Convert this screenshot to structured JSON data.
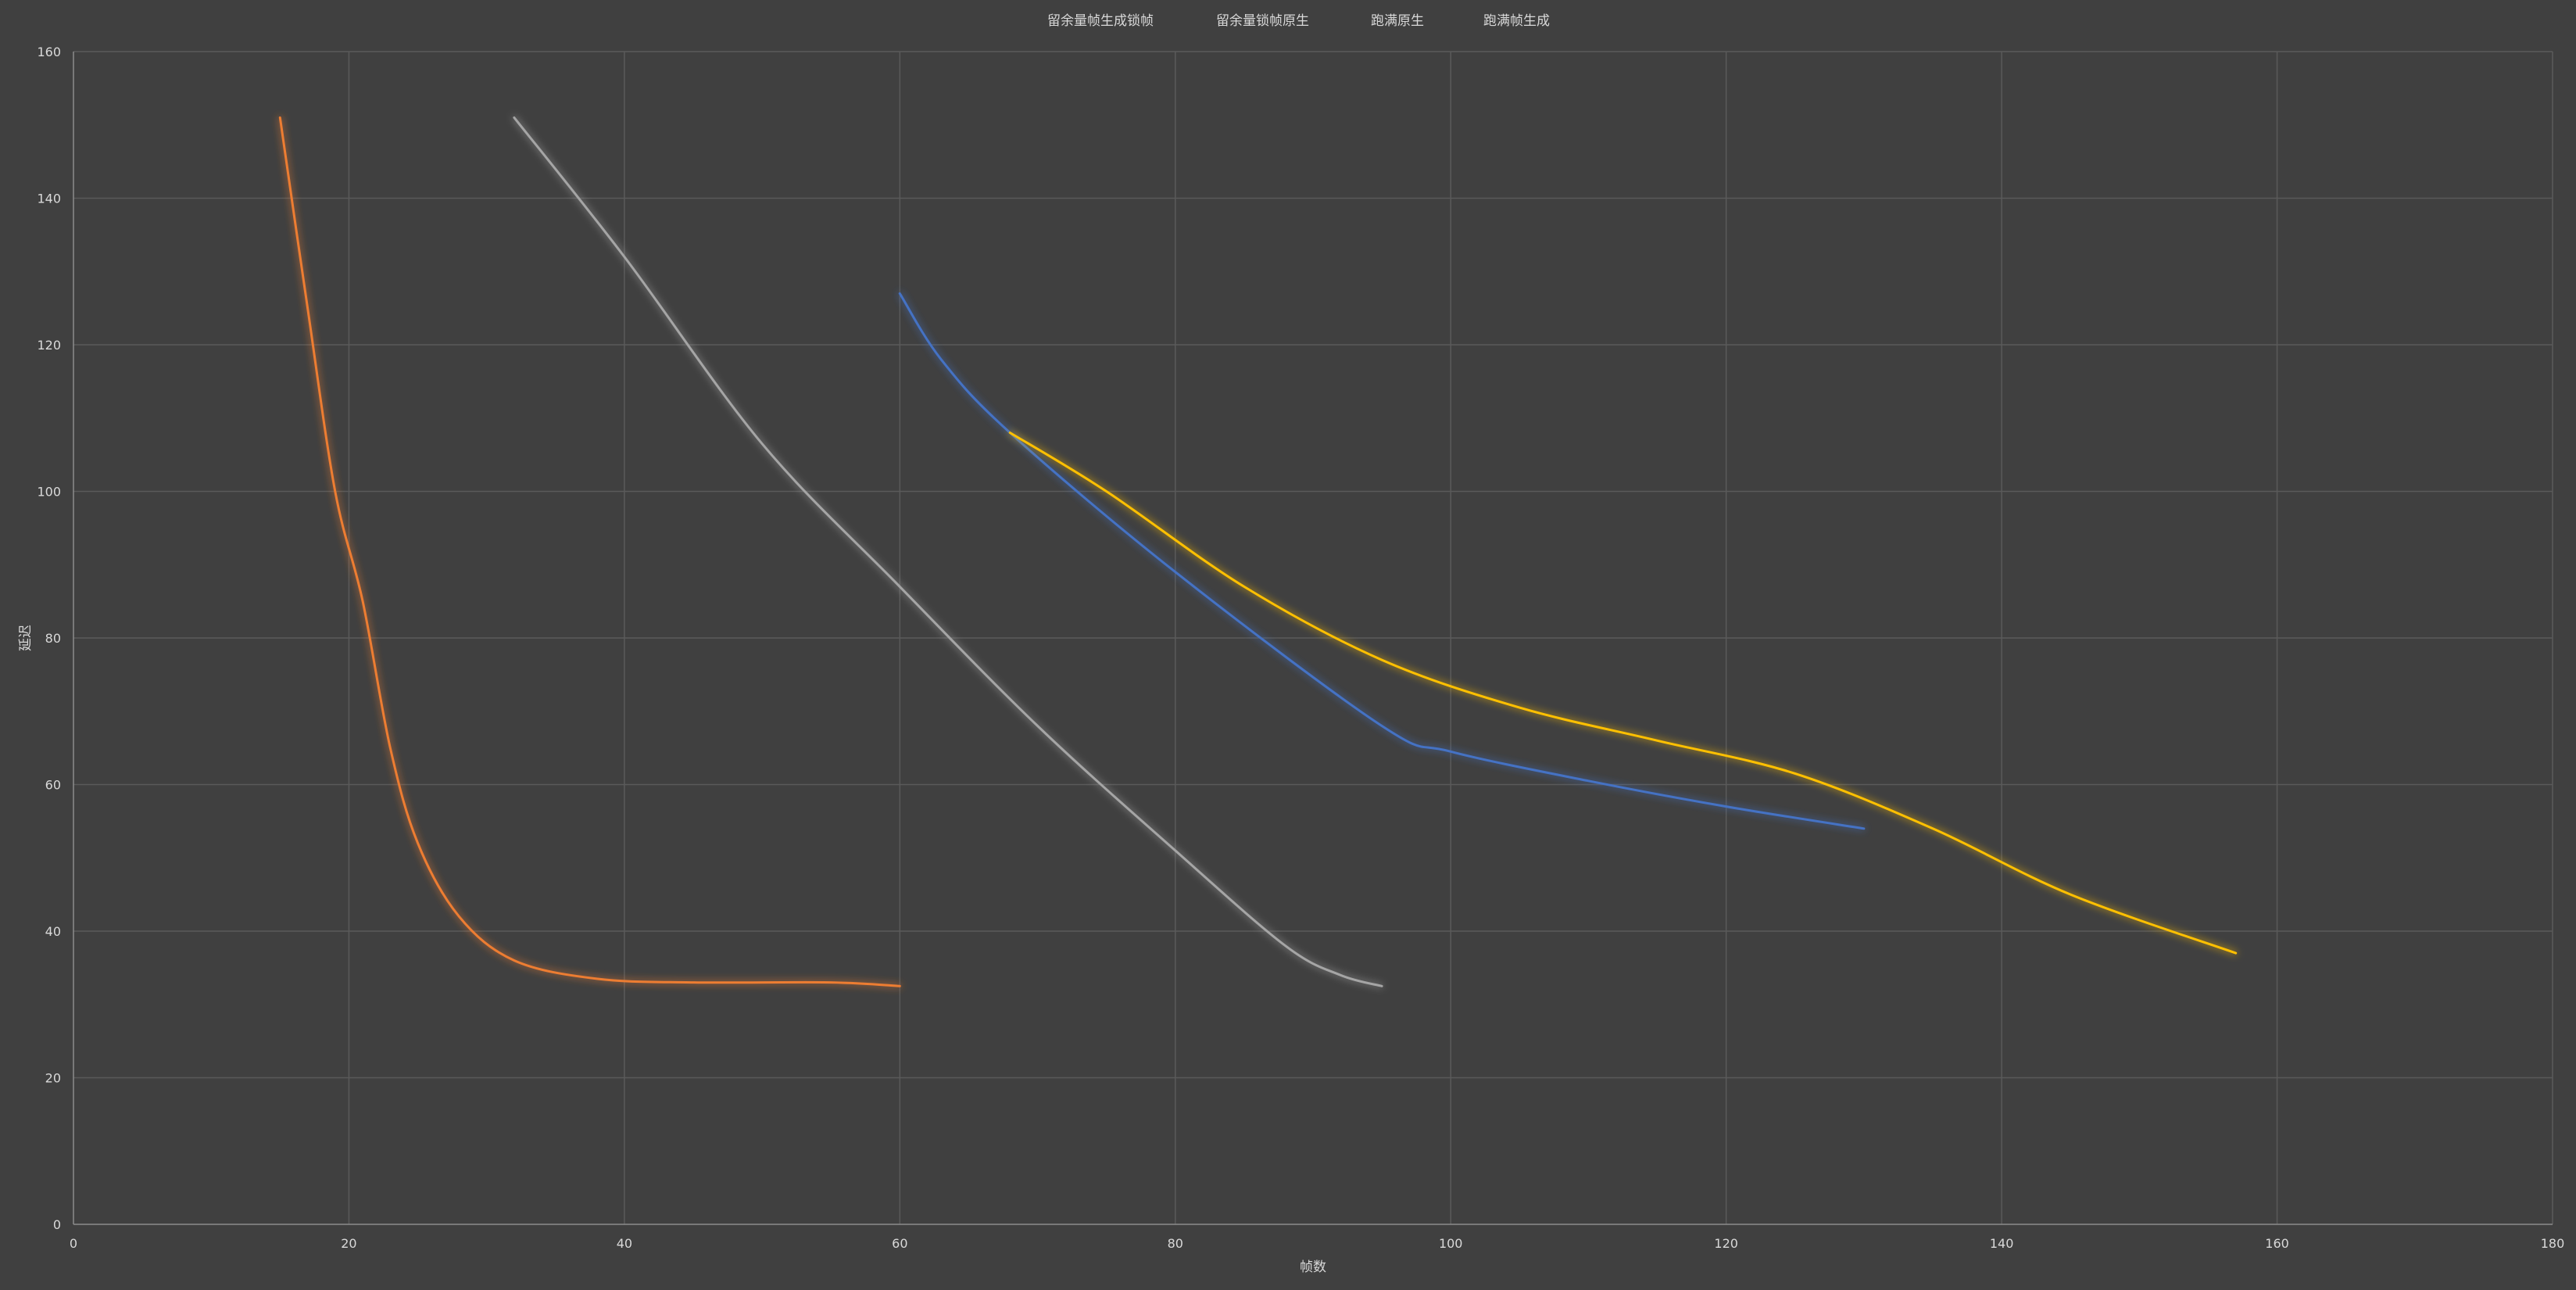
{
  "chart_data": {
    "type": "scatter",
    "title": "",
    "xlabel": "帧数",
    "ylabel": "延迟",
    "xlim": [
      0,
      180
    ],
    "ylim": [
      0,
      160
    ],
    "x_ticks": [
      0,
      20,
      40,
      60,
      80,
      100,
      120,
      140,
      160,
      180
    ],
    "y_ticks": [
      0,
      20,
      40,
      60,
      80,
      100,
      120,
      140,
      160
    ],
    "grid": true,
    "legend_position": "top",
    "smooth_lines": true,
    "series": [
      {
        "name": "留余量帧生成锁帧",
        "color": "#4472c4",
        "points": [
          [
            60,
            127
          ],
          [
            63,
            118
          ],
          [
            68,
            108
          ],
          [
            80,
            89
          ],
          [
            95,
            68
          ],
          [
            100,
            64.5
          ],
          [
            110,
            60.5
          ],
          [
            120,
            57
          ],
          [
            130,
            54
          ]
        ]
      },
      {
        "name": "留余量锁帧原生",
        "color": "#ed7d31",
        "points": [
          [
            15,
            151
          ],
          [
            17,
            125
          ],
          [
            19,
            100
          ],
          [
            21,
            85
          ],
          [
            23,
            65
          ],
          [
            25,
            52
          ],
          [
            28,
            42
          ],
          [
            32,
            36
          ],
          [
            38,
            33.5
          ],
          [
            45,
            33
          ],
          [
            55,
            33
          ],
          [
            60,
            32.5
          ]
        ]
      },
      {
        "name": "跑满原生",
        "color": "#a5a5a5",
        "points": [
          [
            32,
            151
          ],
          [
            40,
            132
          ],
          [
            50,
            106.5
          ],
          [
            60,
            87
          ],
          [
            70,
            68
          ],
          [
            80,
            51
          ],
          [
            88,
            38
          ],
          [
            92,
            34
          ],
          [
            95,
            32.5
          ]
        ]
      },
      {
        "name": "跑满帧生成",
        "color": "#ffc000",
        "points": [
          [
            68,
            108
          ],
          [
            75,
            100
          ],
          [
            85,
            87
          ],
          [
            95,
            77
          ],
          [
            105,
            70.5
          ],
          [
            115,
            66
          ],
          [
            125,
            61.5
          ],
          [
            135,
            54
          ],
          [
            145,
            45
          ],
          [
            157,
            37
          ]
        ]
      }
    ]
  }
}
